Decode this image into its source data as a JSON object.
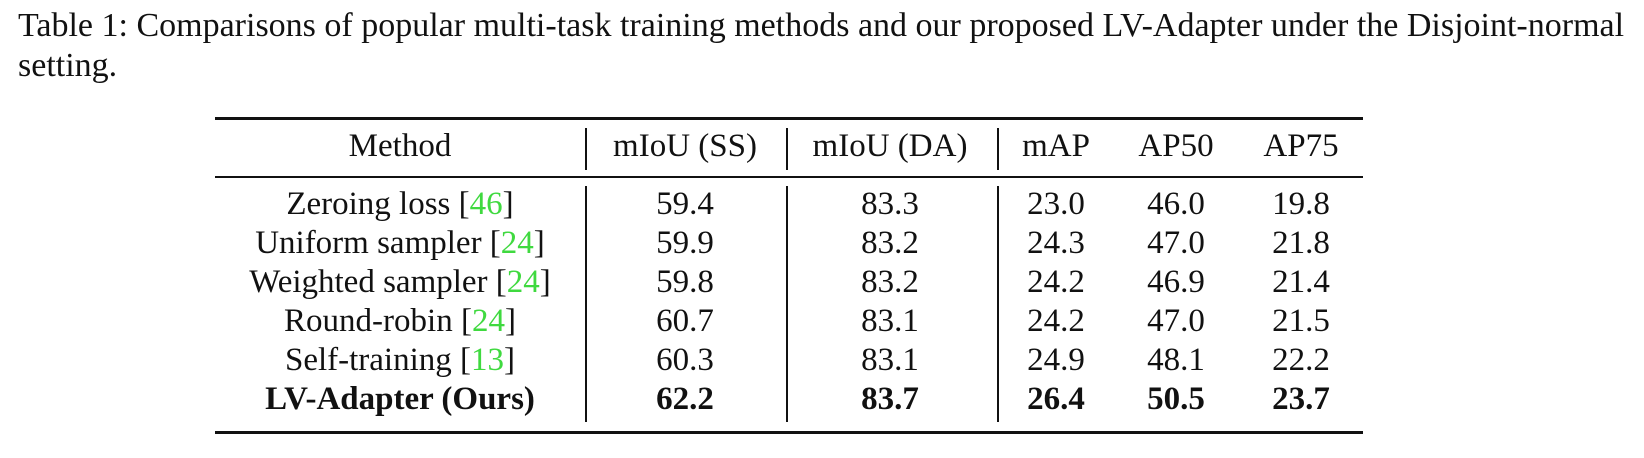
{
  "caption": "Table 1: Comparisons of popular multi-task training methods and our proposed LV-Adapter under the Disjoint-normal setting.",
  "table": {
    "header": [
      "Method",
      "mIoU (SS)",
      "mIoU (DA)",
      "mAP",
      "AP50",
      "AP75"
    ],
    "rows": [
      {
        "method": "Zeroing loss",
        "cite": {
          "open": "[",
          "ref": "46",
          "close": "]"
        },
        "values": [
          "59.4",
          "83.3",
          "23.0",
          "46.0",
          "19.8"
        ]
      },
      {
        "method": "Uniform sampler",
        "cite": {
          "open": "[",
          "ref": "24",
          "close": "]"
        },
        "values": [
          "59.9",
          "83.2",
          "24.3",
          "47.0",
          "21.8"
        ]
      },
      {
        "method": "Weighted sampler",
        "cite": {
          "open": "[",
          "ref": "24",
          "close": "]"
        },
        "values": [
          "59.8",
          "83.2",
          "24.2",
          "46.9",
          "21.4"
        ]
      },
      {
        "method": "Round-robin",
        "cite": {
          "open": "[",
          "ref": "24",
          "close": "]"
        },
        "values": [
          "60.7",
          "83.1",
          "24.2",
          "47.0",
          "21.5"
        ]
      },
      {
        "method": "Self-training",
        "cite": {
          "open": "[",
          "ref": "13",
          "close": "]"
        },
        "values": [
          "60.3",
          "83.1",
          "24.9",
          "48.1",
          "22.2"
        ]
      },
      {
        "method": "LV-Adapter (Ours)",
        "bold": true,
        "values": [
          "62.2",
          "83.7",
          "26.4",
          "50.5",
          "23.7"
        ]
      }
    ]
  }
}
